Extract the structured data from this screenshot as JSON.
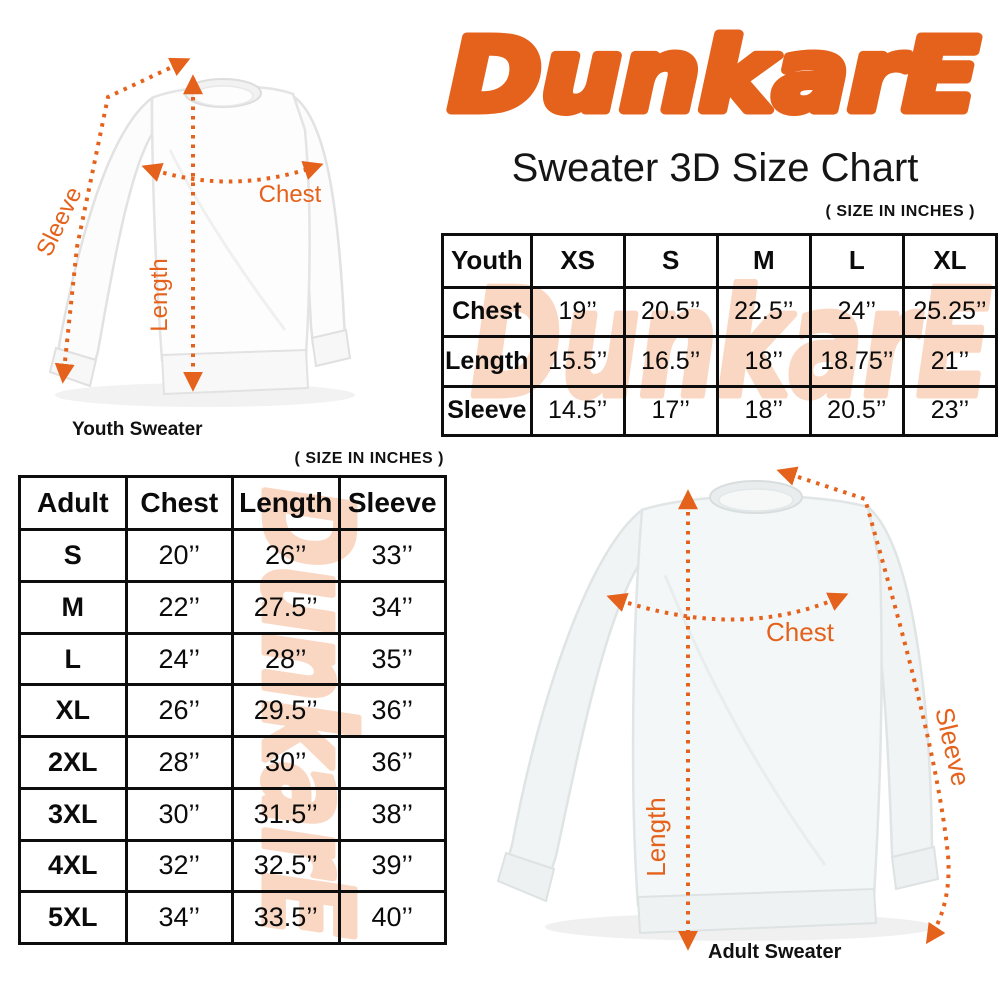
{
  "brand": {
    "logo_text": "DunkarE",
    "logo_color": "#E5621C",
    "watermark_color": "#F9D7C2"
  },
  "header": {
    "title": "Sweater 3D Size Chart"
  },
  "youth_diagram": {
    "caption": "Youth Sweater",
    "chest_label": "Chest",
    "length_label": "Length",
    "sleeve_label": "Sleeve"
  },
  "adult_diagram": {
    "caption": "Adult Sweater",
    "chest_label": "Chest",
    "length_label": "Length",
    "sleeve_label": "Sleeve"
  },
  "youth_table": {
    "size_note": "( SIZE IN INCHES )",
    "header": [
      "Youth",
      "XS",
      "S",
      "M",
      "L",
      "XL"
    ],
    "rows": [
      [
        "Chest",
        "19’’",
        "20.5’’",
        "22.5’’",
        "24’’",
        "25.25’’"
      ],
      [
        "Length",
        "15.5’’",
        "16.5’’",
        "18’’",
        "18.75’’",
        "21’’"
      ],
      [
        "Sleeve",
        "14.5’’",
        "17’’",
        "18’’",
        "20.5’’",
        "23’’"
      ]
    ]
  },
  "adult_table": {
    "size_note": "( SIZE IN INCHES )",
    "header": [
      "Adult",
      "Chest",
      "Length",
      "Sleeve"
    ],
    "rows": [
      [
        "S",
        "20’’",
        "26’’",
        "33’’"
      ],
      [
        "M",
        "22’’",
        "27.5’’",
        "34’’"
      ],
      [
        "L",
        "24’’",
        "28’’",
        "35’’"
      ],
      [
        "XL",
        "26’’",
        "29.5’’",
        "36’’"
      ],
      [
        "2XL",
        "28’’",
        "30’’",
        "36’’"
      ],
      [
        "3XL",
        "30’’",
        "31.5’’",
        "38’’"
      ],
      [
        "4XL",
        "32’’",
        "32.5’’",
        "39’’"
      ],
      [
        "5XL",
        "34’’",
        "33.5’’",
        "40’’"
      ]
    ]
  },
  "chart_data": [
    {
      "type": "table",
      "title": "Youth sweater size chart (inches)",
      "columns": [
        "Youth",
        "XS",
        "S",
        "M",
        "L",
        "XL"
      ],
      "rows": [
        [
          "Chest",
          19,
          20.5,
          22.5,
          24,
          25.25
        ],
        [
          "Length",
          15.5,
          16.5,
          18,
          18.75,
          21
        ],
        [
          "Sleeve",
          14.5,
          17,
          18,
          20.5,
          23
        ]
      ]
    },
    {
      "type": "table",
      "title": "Adult sweater size chart (inches)",
      "columns": [
        "Adult",
        "Chest",
        "Length",
        "Sleeve"
      ],
      "rows": [
        [
          "S",
          20,
          26,
          33
        ],
        [
          "M",
          22,
          27.5,
          34
        ],
        [
          "L",
          24,
          28,
          35
        ],
        [
          "XL",
          26,
          29.5,
          36
        ],
        [
          "2XL",
          28,
          30,
          36
        ],
        [
          "3XL",
          30,
          31.5,
          38
        ],
        [
          "4XL",
          32,
          32.5,
          39
        ],
        [
          "5XL",
          34,
          33.5,
          40
        ]
      ]
    }
  ]
}
